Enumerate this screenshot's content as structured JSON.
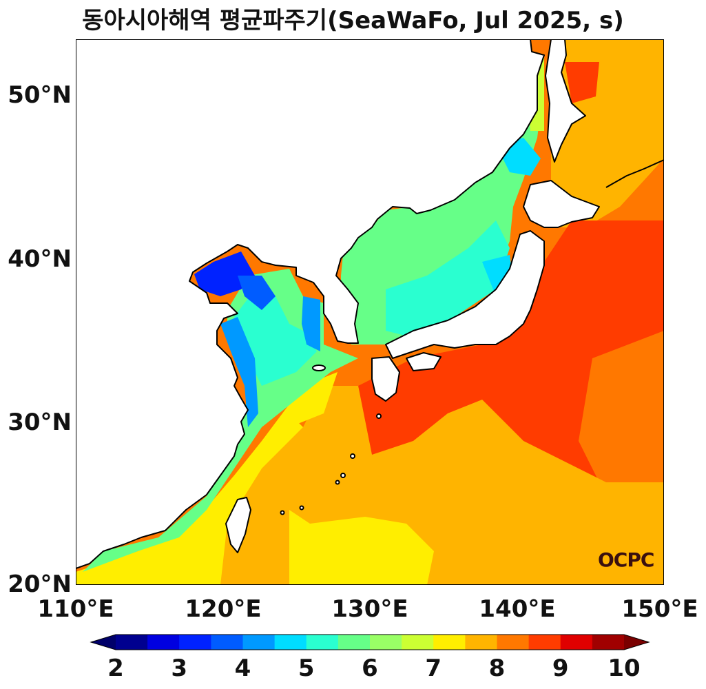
{
  "title": "동아시아해역 평균파주기(SeaWaFo, Jul 2025, s)",
  "watermark": "OCPC",
  "axes": {
    "x_ticks": [
      "110°E",
      "120°E",
      "130°E",
      "140°E",
      "150°E"
    ],
    "y_ticks": [
      "50°N",
      "40°N",
      "30°N",
      "20°N"
    ],
    "lon_range": [
      110,
      150
    ],
    "lat_range": [
      20,
      53.5
    ]
  },
  "colorbar": {
    "ticks": [
      "2",
      "3",
      "4",
      "5",
      "6",
      "7",
      "8",
      "9",
      "10"
    ],
    "min": 2,
    "max": 10,
    "step": 0.5,
    "extend": "both",
    "colors": [
      "#00008f",
      "#0000e0",
      "#0022ff",
      "#005cff",
      "#0099ff",
      "#00ddff",
      "#2affd0",
      "#66ff88",
      "#99ff66",
      "#ccff33",
      "#ffee00",
      "#ffb400",
      "#ff7800",
      "#ff3c00",
      "#e00000",
      "#a00000"
    ],
    "under_color": "#00006a",
    "over_color": "#7a0000"
  },
  "land_color": "#ffffff",
  "coast_color": "#000000"
}
